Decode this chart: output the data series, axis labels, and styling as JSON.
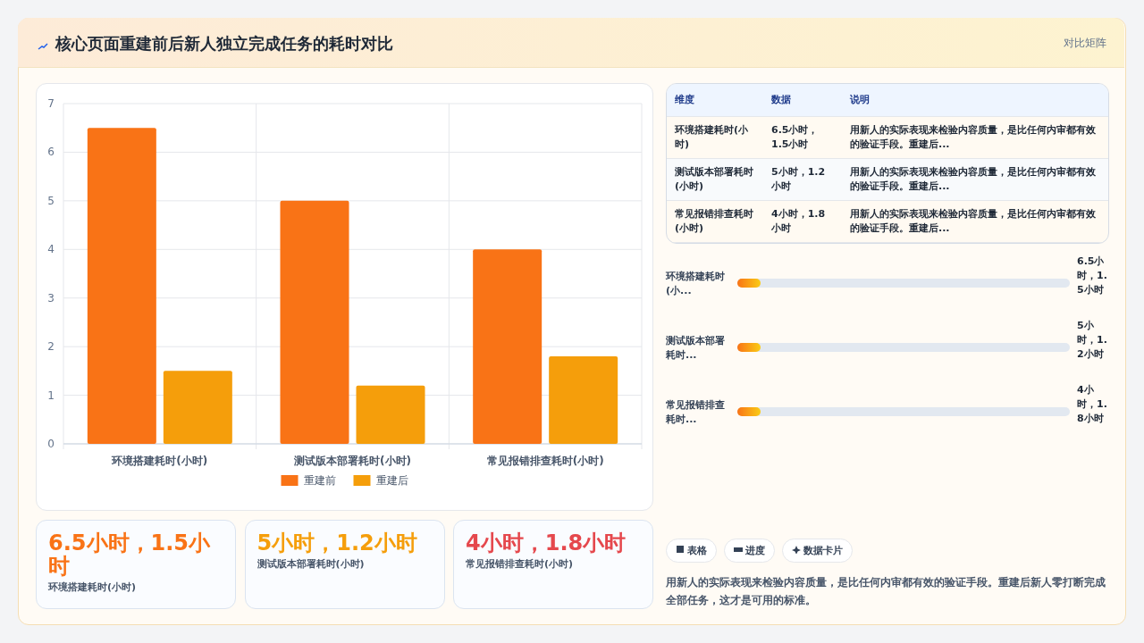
{
  "chart_data": [
    {
      "type": "bar",
      "title": "核心页面重建前后新人独立完成任务的耗时对比",
      "annotations": [
        "对比矩阵"
      ],
      "categories": [
        "环境搭建耗时(小时)",
        "测试版本部署耗时(小时)",
        "常见报错排查耗时(小时)"
      ],
      "series": [
        {
          "name": "重建前",
          "color": "#f97316",
          "values": [
            6.5,
            5,
            4
          ]
        },
        {
          "name": "重建后",
          "color": "#f59e0b",
          "values": [
            1.5,
            1.2,
            1.8
          ]
        }
      ],
      "ylim": [
        0,
        7
      ],
      "yticks": [
        0,
        1,
        2,
        3,
        4,
        5,
        6,
        7
      ],
      "grid": true,
      "legend": "bottom"
    },
    {
      "type": "other",
      "annotations": [
        "维度",
        "数据",
        "说明",
        "环境搭建耗时(小时)",
        "6.5小时，1.5小时",
        "用新人的实际表现来检验内容质量，是比任何内审都有效的验证手段。重建后...",
        "测试版本部署耗时(小时)",
        "5小时，1.2小时",
        "用新人的实际表现来检验内容质量，是比任何内审都有效的验证手段。重建后...",
        "常见报错排查耗时(小时)",
        "4小时，1.8小时",
        "用新人的实际表现来检验内容质量，是比任何内审都有效的验证手段。重建后..."
      ]
    },
    {
      "type": "other",
      "annotations": [
        "环境搭建耗时(小...",
        "6.5小时，1.5小时",
        "测试版本部署耗时...",
        "5小时，1.2小时",
        "常见报错排查耗时...",
        "4小时，1.8小时"
      ]
    },
    {
      "type": "other",
      "annotations": [
        "6.5小时，1.5小时",
        "环境搭建耗时(小时)",
        "5小时，1.2小时",
        "测试版本部署耗时(小时)",
        "4小时，1.8小时",
        "常见报错排查耗时(小时)"
      ],
      "colors": [
        "#f97316",
        "#f59e0b",
        "#e5484d"
      ]
    },
    {
      "type": "other",
      "annotations": [
        "表格",
        "进度",
        "数据卡片",
        "用新人的实际表现来检验内容质量，是比任何内审都有效的验证手段。重建后新人零打断完成全部任务，这才是可用的标准。"
      ]
    }
  ]
}
